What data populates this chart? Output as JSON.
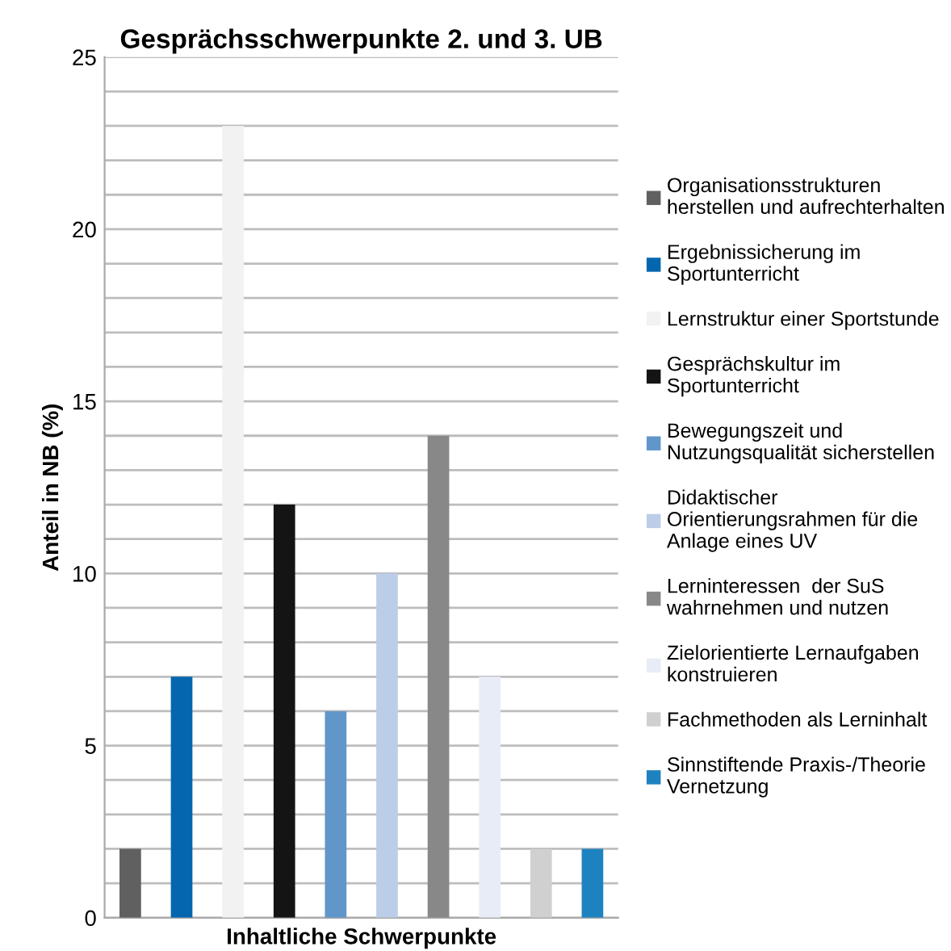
{
  "chart_data": {
    "type": "bar",
    "title": "Gesprächsschwerpunkte 2. und 3. UB",
    "xlabel": "Inhaltliche Schwerpunkte",
    "ylabel": "Anteil in NB (%)",
    "categories": [
      null
    ],
    "series": [
      {
        "name": "Organisationsstrukturen\nherstellen und aufrechterhalten",
        "color": "#606060",
        "values": [
          2
        ]
      },
      {
        "name": "Ergebnissicherung im\nSportunterricht",
        "color": "#0566b0",
        "values": [
          7
        ]
      },
      {
        "name": "Lernstruktur einer Sportstunde",
        "color": "#f2f2f2",
        "values": [
          23
        ]
      },
      {
        "name": "Gesprächskultur im\nSportunterricht",
        "color": "#141414",
        "values": [
          12
        ]
      },
      {
        "name": "Bewegungszeit und\nNutzungsqualität sicherstellen",
        "color": "#6196cb",
        "values": [
          6
        ]
      },
      {
        "name": "Didaktischer\nOrientierungsrahmen für die\nAnlage eines UV",
        "color": "#bccde8",
        "values": [
          10
        ]
      },
      {
        "name": "Lerninteressen  der SuS\nwahrnehmen und nutzen",
        "color": "#888888",
        "values": [
          14
        ]
      },
      {
        "name": "Zielorientierte Lernaufgaben\nkonstruieren",
        "color": "#e8ecf6",
        "values": [
          7
        ]
      },
      {
        "name": "Fachmethoden als Lerninhalt",
        "color": "#d0d0d0",
        "values": [
          2
        ]
      },
      {
        "name": "Sinnstiftende Praxis-/Theorie\nVernetzung",
        "color": "#1f82c0",
        "values": [
          2
        ]
      }
    ],
    "ylim": [
      0,
      25
    ],
    "yticks": [
      0,
      {
        "value": 1,
        "label": null
      },
      {
        "value": 2,
        "label": null
      },
      {
        "value": 3,
        "label": null
      },
      {
        "value": 4,
        "label": null
      },
      5,
      {
        "value": 6,
        "label": null
      },
      {
        "value": 7,
        "label": null
      },
      {
        "value": 8,
        "label": null
      },
      {
        "value": 9,
        "label": null
      },
      10,
      {
        "value": 11,
        "label": null
      },
      {
        "value": 12,
        "label": null
      },
      {
        "value": 13,
        "label": null
      },
      {
        "value": 14,
        "label": null
      },
      15,
      {
        "value": 16,
        "label": null
      },
      {
        "value": 17,
        "label": null
      },
      {
        "value": 18,
        "label": null
      },
      {
        "value": 19,
        "label": null
      },
      20,
      {
        "value": 21,
        "label": null
      },
      {
        "value": 22,
        "label": null
      },
      {
        "value": 23,
        "label": null
      },
      {
        "value": 24,
        "label": null
      },
      25
    ],
    "grid": "y",
    "legend": "right"
  }
}
